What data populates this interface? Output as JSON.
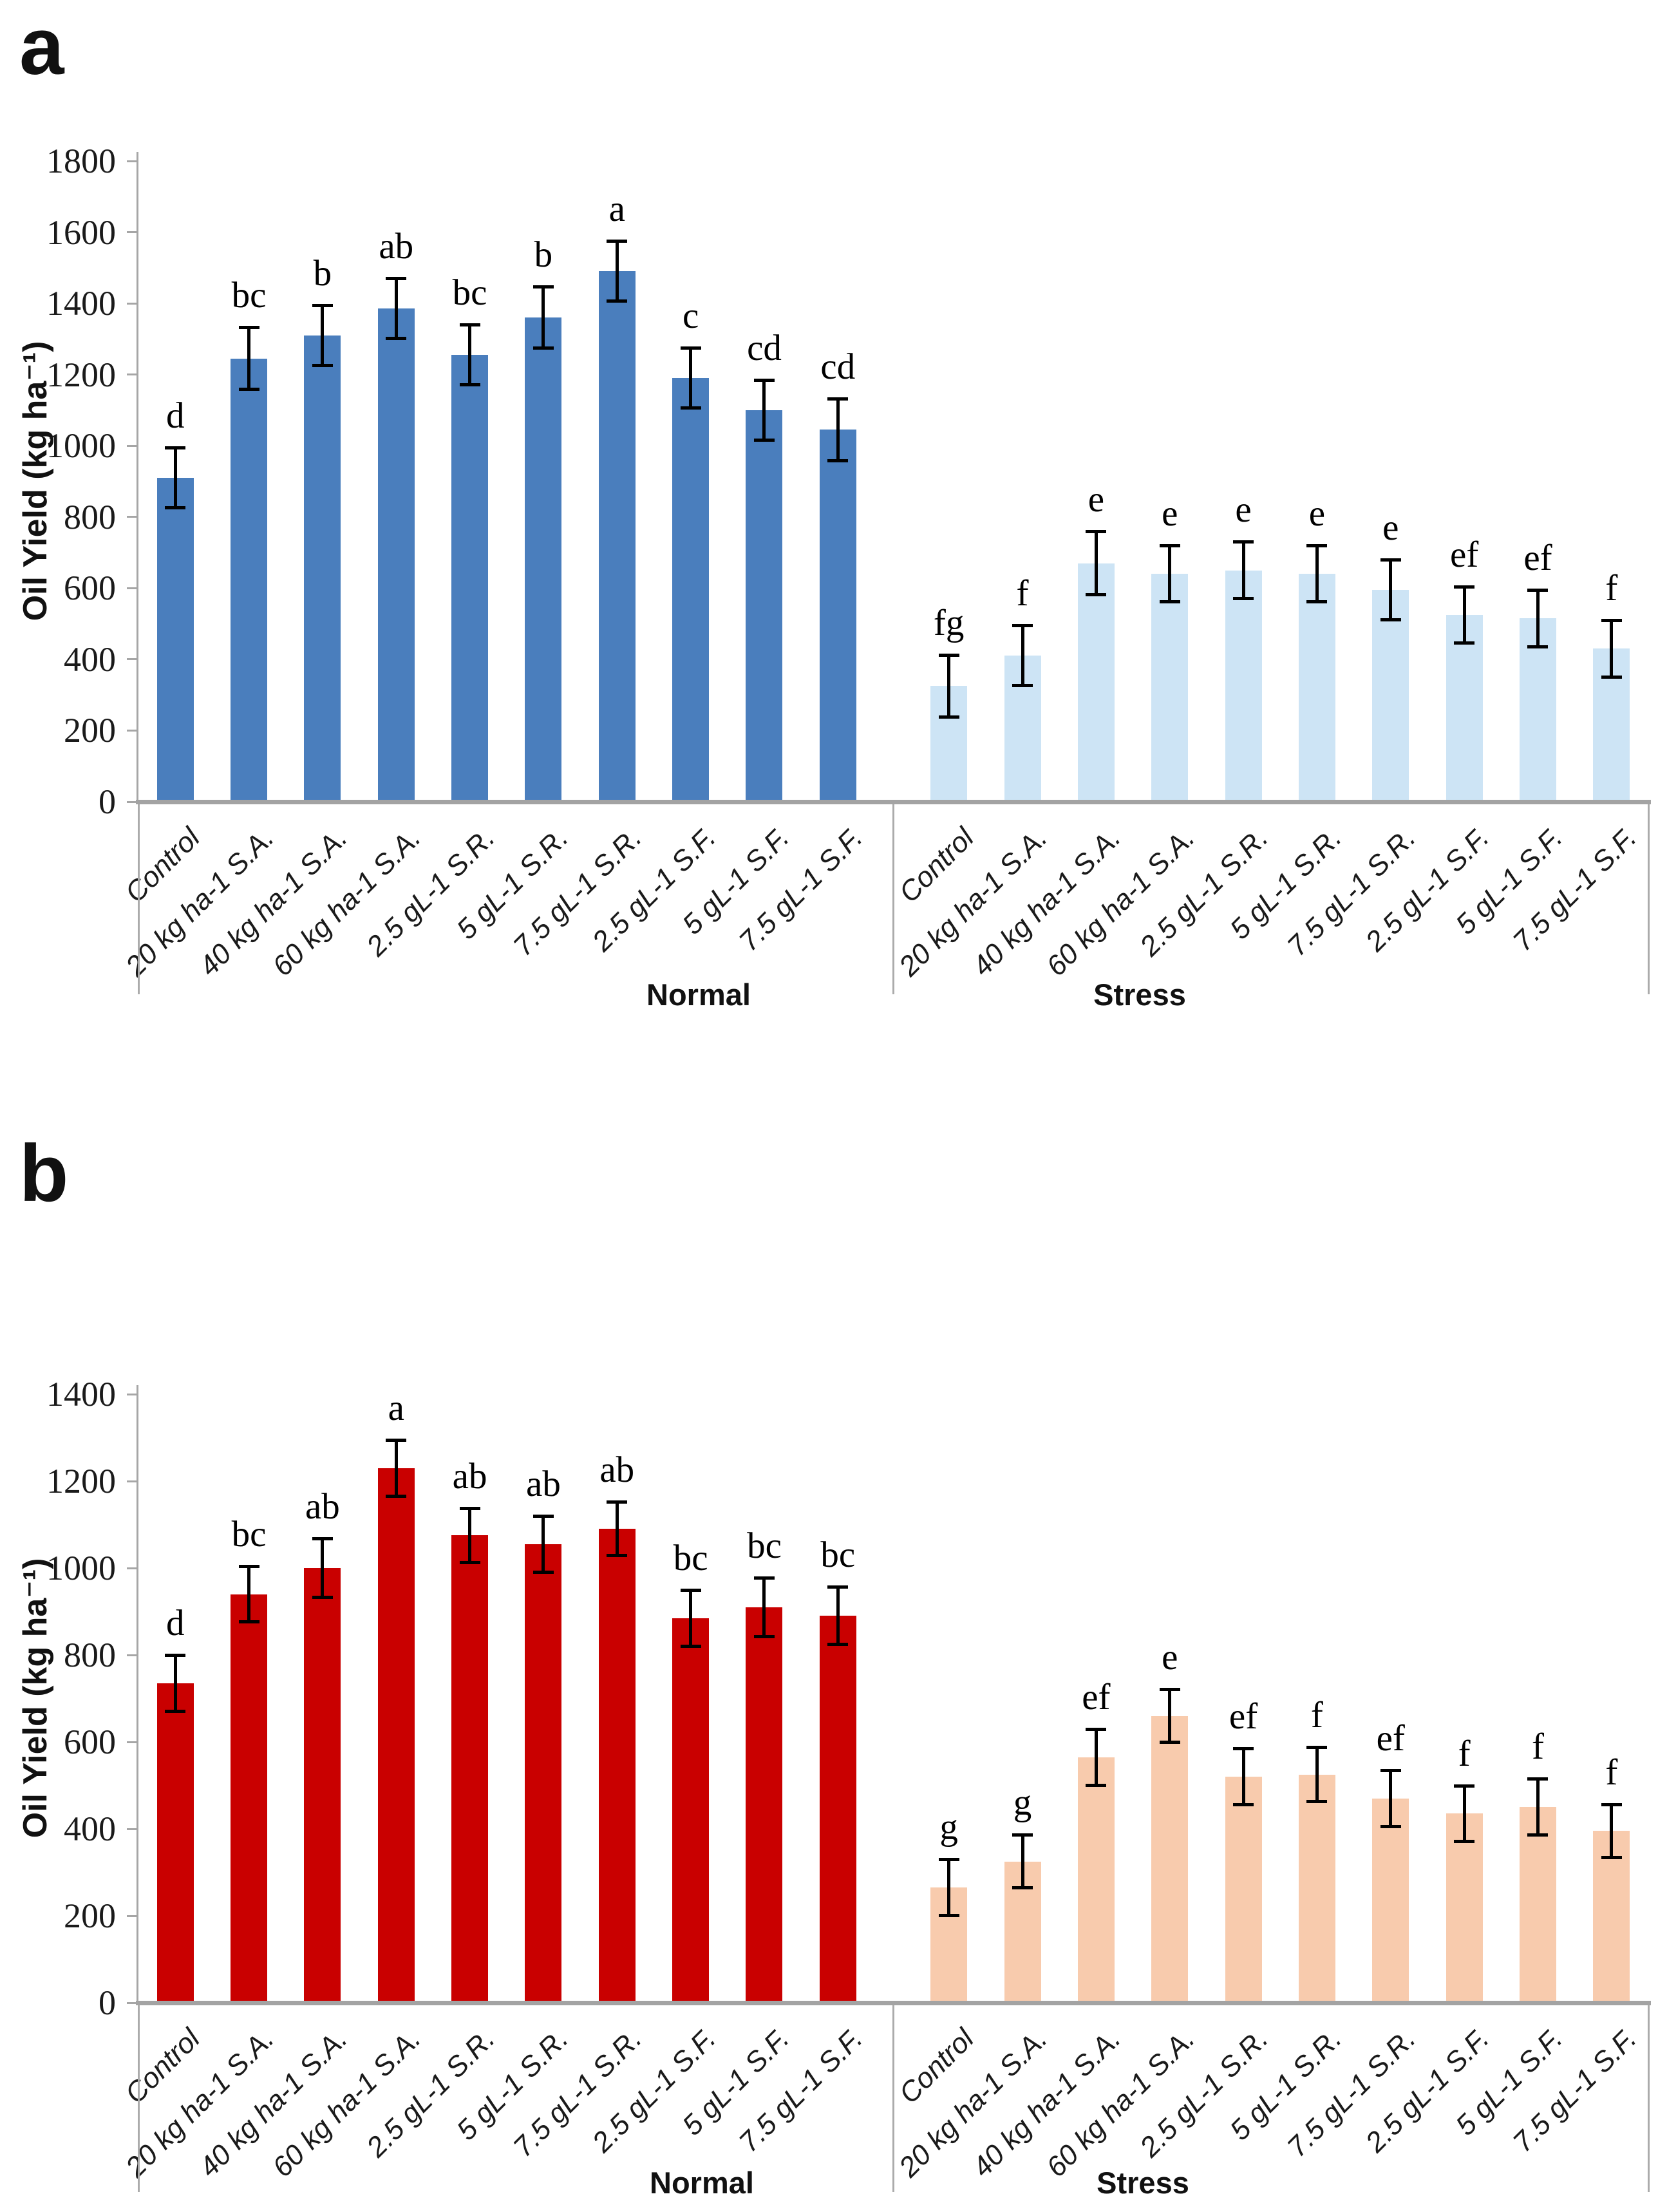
{
  "figure": {
    "panels": [
      {
        "letter": "a"
      },
      {
        "letter": "b"
      }
    ]
  },
  "chart_data": [
    {
      "type": "bar",
      "panel": "a",
      "title": "",
      "xlabel": "",
      "ylabel": "Oil Yield (kg ha⁻¹)",
      "ylim": [
        0,
        1800
      ],
      "ytick_step": 200,
      "yticks": [
        0,
        200,
        400,
        600,
        800,
        1000,
        1200,
        1400,
        1600,
        1800
      ],
      "grid": false,
      "legend": "none",
      "group_axis_labels": [
        "Normal",
        "Stress"
      ],
      "categories": [
        "Control",
        "20 kg ha-1 S.A.",
        "40 kg ha-1 S.A.",
        "60 kg ha-1 S.A.",
        "2.5 gL-1 S.R.",
        "5 gL-1 S.R.",
        "7.5 gL-1 S.R.",
        "2.5 gL-1 S.F.",
        "5 gL-1 S.F.",
        "7.5 gL-1 S.F."
      ],
      "series": [
        {
          "name": "Normal",
          "color": "#4a7ebd",
          "values": [
            910,
            1245,
            1310,
            1385,
            1255,
            1360,
            1490,
            1190,
            1100,
            1045
          ],
          "errors": [
            85,
            88,
            85,
            85,
            85,
            87,
            85,
            85,
            85,
            88
          ],
          "sig_letters": [
            "d",
            "bc",
            "b",
            "ab",
            "bc",
            "b",
            "a",
            "c",
            "cd",
            "cd"
          ]
        },
        {
          "name": "Stress",
          "color": "#cde4f5",
          "values": [
            325,
            410,
            670,
            640,
            650,
            640,
            595,
            525,
            515,
            430
          ],
          "errors": [
            88,
            85,
            90,
            80,
            80,
            80,
            85,
            80,
            80,
            80
          ],
          "sig_letters": [
            "fg",
            "f",
            "e",
            "e",
            "e",
            "e",
            "e",
            "ef",
            "ef",
            "f"
          ]
        }
      ]
    },
    {
      "type": "bar",
      "panel": "b",
      "title": "",
      "xlabel": "",
      "ylabel": "Oil Yield (kg ha⁻¹)",
      "ylim": [
        0,
        1400
      ],
      "ytick_step": 200,
      "yticks": [
        0,
        200,
        400,
        600,
        800,
        1000,
        1200,
        1400
      ],
      "grid": false,
      "legend": "none",
      "group_axis_labels": [
        "Normal",
        "Stress"
      ],
      "categories": [
        "Control",
        "20 kg ha-1 S.A.",
        "40 kg ha-1 S.A.",
        "60 kg ha-1 S.A.",
        "2.5 gL-1 S.R.",
        "5 gL-1 S.R.",
        "7.5 gL-1 S.R.",
        "2.5 gL-1 S.F.",
        "5 gL-1 S.F.",
        "7.5 gL-1 S.F."
      ],
      "series": [
        {
          "name": "Normal",
          "color": "#c90000",
          "values": [
            735,
            940,
            1000,
            1230,
            1075,
            1055,
            1090,
            885,
            910,
            890
          ],
          "errors": [
            65,
            65,
            68,
            65,
            63,
            65,
            62,
            65,
            68,
            67
          ],
          "sig_letters": [
            "d",
            "bc",
            "ab",
            "a",
            "ab",
            "ab",
            "ab",
            "bc",
            "bc",
            "bc"
          ]
        },
        {
          "name": "Stress",
          "color": "#f8cbad",
          "values": [
            265,
            325,
            565,
            660,
            520,
            525,
            470,
            435,
            450,
            395
          ],
          "errors": [
            65,
            62,
            65,
            62,
            65,
            63,
            65,
            65,
            65,
            62
          ],
          "sig_letters": [
            "g",
            "g",
            "ef",
            "e",
            "ef",
            "f",
            "ef",
            "f",
            "f",
            "f"
          ]
        }
      ]
    }
  ]
}
